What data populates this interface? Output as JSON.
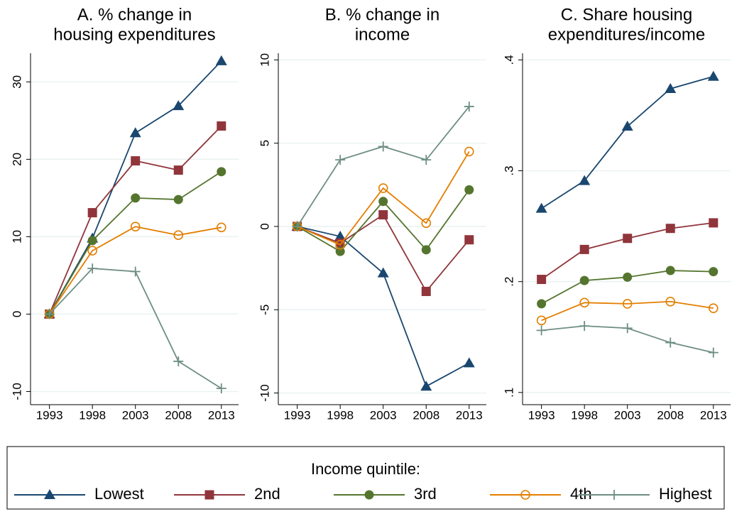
{
  "chart_data": [
    {
      "type": "line",
      "title": [
        "A. % change in",
        "housing expenditures"
      ],
      "x": [
        1993,
        1998,
        2003,
        2008,
        2013
      ],
      "xlim": [
        1990.8,
        2015.0
      ],
      "xticks": [
        1993,
        1998,
        2003,
        2008,
        2013
      ],
      "ylim": [
        -11.7,
        33.7
      ],
      "yticks": [
        -10,
        0,
        10,
        20,
        30
      ],
      "grid": true,
      "series": [
        {
          "name": "Lowest",
          "color": "#1a476f",
          "marker": "triangle",
          "values": [
            0,
            9.8,
            23.4,
            26.9,
            32.7
          ]
        },
        {
          "name": "2nd",
          "color": "#90353b",
          "marker": "square",
          "values": [
            0,
            13.1,
            19.8,
            18.6,
            24.3
          ]
        },
        {
          "name": "3rd",
          "color": "#55752f",
          "marker": "circle",
          "values": [
            0,
            9.5,
            15.0,
            14.8,
            18.4
          ]
        },
        {
          "name": "4th",
          "color": "#e37e00",
          "marker": "hollow-circle",
          "values": [
            0,
            8.2,
            11.3,
            10.2,
            11.2
          ]
        },
        {
          "name": "Highest",
          "color": "#6e8e84",
          "marker": "plus",
          "values": [
            0,
            5.9,
            5.5,
            -6.1,
            -9.6
          ]
        }
      ]
    },
    {
      "type": "line",
      "title": [
        "B. % change in",
        "income"
      ],
      "x": [
        1993,
        1998,
        2003,
        2008,
        2013
      ],
      "xlim": [
        1990.8,
        2015.0
      ],
      "xticks": [
        1993,
        1998,
        2003,
        2008,
        2013
      ],
      "ylim": [
        -10.7,
        10.4
      ],
      "yticks": [
        -10,
        -5,
        0,
        5,
        10
      ],
      "grid": true,
      "series": [
        {
          "name": "Lowest",
          "color": "#1a476f",
          "marker": "triangle",
          "values": [
            0,
            -0.6,
            -2.8,
            -9.6,
            -8.2
          ]
        },
        {
          "name": "2nd",
          "color": "#90353b",
          "marker": "square",
          "values": [
            0,
            -1.0,
            0.7,
            -3.9,
            -0.8
          ]
        },
        {
          "name": "3rd",
          "color": "#55752f",
          "marker": "circle",
          "values": [
            0,
            -1.5,
            1.5,
            -1.4,
            2.2
          ]
        },
        {
          "name": "4th",
          "color": "#e37e00",
          "marker": "hollow-circle",
          "values": [
            0,
            -1.1,
            2.3,
            0.2,
            4.5
          ]
        },
        {
          "name": "Highest",
          "color": "#6e8e84",
          "marker": "plus",
          "values": [
            0,
            4.0,
            4.8,
            4.0,
            7.2
          ]
        }
      ]
    },
    {
      "type": "line",
      "title": [
        "C. Share housing",
        "expenditures/income"
      ],
      "x": [
        1993,
        1998,
        2003,
        2008,
        2013
      ],
      "xlim": [
        1990.8,
        2015.0
      ],
      "xticks": [
        1993,
        1998,
        2003,
        2008,
        2013
      ],
      "ylim": [
        0.089,
        0.406
      ],
      "yticks": [
        {
          "value": 0.1,
          "label": ".1"
        },
        {
          "value": 0.2,
          "label": ".2"
        },
        {
          "value": 0.3,
          "label": ".3"
        },
        {
          "value": 0.4,
          "label": ".4"
        }
      ],
      "grid": true,
      "series": [
        {
          "name": "Lowest",
          "color": "#1a476f",
          "marker": "triangle",
          "values": [
            0.266,
            0.291,
            0.34,
            0.374,
            0.385
          ]
        },
        {
          "name": "2nd",
          "color": "#90353b",
          "marker": "square",
          "values": [
            0.202,
            0.229,
            0.239,
            0.248,
            0.253
          ]
        },
        {
          "name": "3rd",
          "color": "#55752f",
          "marker": "circle",
          "values": [
            0.18,
            0.201,
            0.204,
            0.21,
            0.209
          ]
        },
        {
          "name": "4th",
          "color": "#e37e00",
          "marker": "hollow-circle",
          "values": [
            0.165,
            0.181,
            0.18,
            0.182,
            0.176
          ]
        },
        {
          "name": "Highest",
          "color": "#6e8e84",
          "marker": "plus",
          "values": [
            0.156,
            0.16,
            0.158,
            0.145,
            0.136
          ]
        }
      ]
    }
  ],
  "legend": {
    "title": "Income quintile:"
  }
}
